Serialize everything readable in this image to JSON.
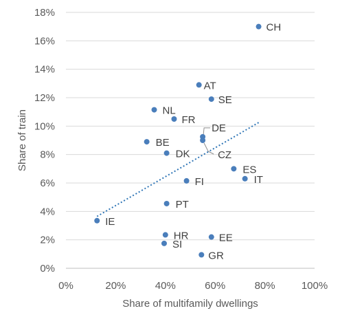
{
  "chart_data": {
    "type": "scatter",
    "xlabel": "Share of multifamily dwellings",
    "ylabel": "Share of train",
    "xlim": [
      0,
      100
    ],
    "ylim": [
      0,
      18
    ],
    "x_ticks": [
      0,
      20,
      40,
      60,
      80,
      100
    ],
    "y_ticks": [
      0,
      2,
      4,
      6,
      8,
      10,
      12,
      14,
      16,
      18
    ],
    "x_tick_labels": [
      "0%",
      "20%",
      "40%",
      "60%",
      "80%",
      "100%"
    ],
    "y_tick_labels": [
      "0%",
      "2%",
      "4%",
      "6%",
      "8%",
      "10%",
      "12%",
      "14%",
      "16%",
      "18%"
    ],
    "grid": "horizontal",
    "legend": "none",
    "marker_color": "#4a7ebb",
    "trendline_color": "#2e75b6",
    "points": [
      {
        "label": "CH",
        "x": 77.5,
        "y": 17.0
      },
      {
        "label": "AT",
        "x": 53.5,
        "y": 12.9
      },
      {
        "label": "SE",
        "x": 58.5,
        "y": 11.9
      },
      {
        "label": "NL",
        "x": 35.5,
        "y": 11.15
      },
      {
        "label": "FR",
        "x": 43.5,
        "y": 10.5
      },
      {
        "label": "DE",
        "x": 55.0,
        "y": 9.25
      },
      {
        "label": "CZ",
        "x": 55.0,
        "y": 9.0
      },
      {
        "label": "BE",
        "x": 32.5,
        "y": 8.9
      },
      {
        "label": "DK",
        "x": 40.5,
        "y": 8.1
      },
      {
        "label": "ES",
        "x": 67.5,
        "y": 7.0
      },
      {
        "label": "IT",
        "x": 72.0,
        "y": 6.3
      },
      {
        "label": "FI",
        "x": 48.5,
        "y": 6.15
      },
      {
        "label": "PT",
        "x": 40.5,
        "y": 4.55
      },
      {
        "label": "IE",
        "x": 12.5,
        "y": 3.35
      },
      {
        "label": "HR",
        "x": 40.0,
        "y": 2.35
      },
      {
        "label": "EE",
        "x": 58.5,
        "y": 2.2
      },
      {
        "label": "SI",
        "x": 39.5,
        "y": 1.75
      },
      {
        "label": "GR",
        "x": 54.5,
        "y": 0.95
      }
    ],
    "trendline": {
      "x": [
        12.5,
        77.5
      ],
      "y": [
        3.65,
        10.25
      ]
    }
  }
}
